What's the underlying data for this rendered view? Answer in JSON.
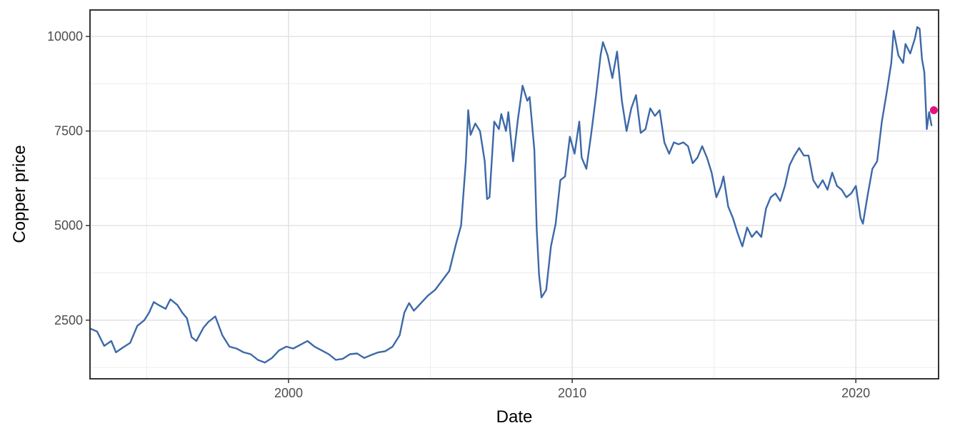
{
  "chart_data": {
    "type": "line",
    "title": "",
    "xlabel": "Date",
    "ylabel": "Copper price",
    "x_ticks": [
      "2000",
      "2010",
      "2020"
    ],
    "y_ticks": [
      "2500",
      "5000",
      "7500",
      "10000"
    ],
    "xlim": [
      "1993-01",
      "2022-12"
    ],
    "ylim": [
      950,
      10700
    ],
    "grid": true,
    "legend": "none",
    "line_color": "#3c68a8",
    "highlight_color": "#e0127e",
    "series": [
      {
        "points": [
          [
            "1993-01",
            2280
          ],
          [
            "1993-04",
            2200
          ],
          [
            "1993-07",
            1820
          ],
          [
            "1993-10",
            1950
          ],
          [
            "1993-12",
            1650
          ],
          [
            "1994-03",
            1780
          ],
          [
            "1994-06",
            1900
          ],
          [
            "1994-09",
            2350
          ],
          [
            "1994-12",
            2500
          ],
          [
            "1995-02",
            2700
          ],
          [
            "1995-04",
            2980
          ],
          [
            "1995-06",
            2900
          ],
          [
            "1995-09",
            2800
          ],
          [
            "1995-11",
            3050
          ],
          [
            "1996-02",
            2900
          ],
          [
            "1996-04",
            2700
          ],
          [
            "1996-06",
            2550
          ],
          [
            "1996-08",
            2050
          ],
          [
            "1996-10",
            1950
          ],
          [
            "1997-01",
            2300
          ],
          [
            "1997-03",
            2450
          ],
          [
            "1997-06",
            2600
          ],
          [
            "1997-09",
            2100
          ],
          [
            "1997-12",
            1800
          ],
          [
            "1998-03",
            1750
          ],
          [
            "1998-06",
            1650
          ],
          [
            "1998-09",
            1600
          ],
          [
            "1998-12",
            1450
          ],
          [
            "1999-03",
            1380
          ],
          [
            "1999-06",
            1500
          ],
          [
            "1999-09",
            1700
          ],
          [
            "1999-12",
            1800
          ],
          [
            "2000-03",
            1750
          ],
          [
            "2000-06",
            1850
          ],
          [
            "2000-09",
            1950
          ],
          [
            "2000-12",
            1800
          ],
          [
            "2001-03",
            1700
          ],
          [
            "2001-06",
            1600
          ],
          [
            "2001-09",
            1450
          ],
          [
            "2001-12",
            1480
          ],
          [
            "2002-03",
            1600
          ],
          [
            "2002-06",
            1620
          ],
          [
            "2002-09",
            1500
          ],
          [
            "2002-12",
            1580
          ],
          [
            "2003-03",
            1650
          ],
          [
            "2003-06",
            1680
          ],
          [
            "2003-09",
            1800
          ],
          [
            "2003-12",
            2100
          ],
          [
            "2004-02",
            2700
          ],
          [
            "2004-04",
            2950
          ],
          [
            "2004-06",
            2750
          ],
          [
            "2004-09",
            2950
          ],
          [
            "2004-12",
            3150
          ],
          [
            "2005-03",
            3300
          ],
          [
            "2005-06",
            3550
          ],
          [
            "2005-09",
            3800
          ],
          [
            "2005-12",
            4550
          ],
          [
            "2006-02",
            5000
          ],
          [
            "2006-04",
            6700
          ],
          [
            "2006-05",
            8050
          ],
          [
            "2006-06",
            7400
          ],
          [
            "2006-08",
            7700
          ],
          [
            "2006-10",
            7500
          ],
          [
            "2006-12",
            6700
          ],
          [
            "2007-01",
            5700
          ],
          [
            "2007-02",
            5750
          ],
          [
            "2007-04",
            7750
          ],
          [
            "2007-06",
            7550
          ],
          [
            "2007-07",
            7950
          ],
          [
            "2007-09",
            7500
          ],
          [
            "2007-10",
            8000
          ],
          [
            "2007-12",
            6700
          ],
          [
            "2008-02",
            7800
          ],
          [
            "2008-04",
            8700
          ],
          [
            "2008-06",
            8300
          ],
          [
            "2008-07",
            8400
          ],
          [
            "2008-09",
            7000
          ],
          [
            "2008-10",
            4900
          ],
          [
            "2008-11",
            3700
          ],
          [
            "2008-12",
            3100
          ],
          [
            "2009-02",
            3300
          ],
          [
            "2009-04",
            4450
          ],
          [
            "2009-06",
            5050
          ],
          [
            "2009-08",
            6200
          ],
          [
            "2009-10",
            6300
          ],
          [
            "2009-12",
            7350
          ],
          [
            "2010-02",
            6900
          ],
          [
            "2010-04",
            7750
          ],
          [
            "2010-05",
            6800
          ],
          [
            "2010-07",
            6500
          ],
          [
            "2010-09",
            7400
          ],
          [
            "2010-11",
            8400
          ],
          [
            "2011-01",
            9500
          ],
          [
            "2011-02",
            9850
          ],
          [
            "2011-04",
            9500
          ],
          [
            "2011-06",
            8900
          ],
          [
            "2011-08",
            9600
          ],
          [
            "2011-10",
            8300
          ],
          [
            "2011-12",
            7500
          ],
          [
            "2012-02",
            8100
          ],
          [
            "2012-04",
            8450
          ],
          [
            "2012-06",
            7450
          ],
          [
            "2012-08",
            7550
          ],
          [
            "2012-10",
            8100
          ],
          [
            "2012-12",
            7900
          ],
          [
            "2013-02",
            8050
          ],
          [
            "2013-04",
            7200
          ],
          [
            "2013-06",
            6900
          ],
          [
            "2013-08",
            7200
          ],
          [
            "2013-10",
            7150
          ],
          [
            "2013-12",
            7200
          ],
          [
            "2014-02",
            7100
          ],
          [
            "2014-04",
            6650
          ],
          [
            "2014-06",
            6800
          ],
          [
            "2014-08",
            7100
          ],
          [
            "2014-10",
            6800
          ],
          [
            "2014-12",
            6400
          ],
          [
            "2015-02",
            5750
          ],
          [
            "2015-04",
            6050
          ],
          [
            "2015-05",
            6300
          ],
          [
            "2015-07",
            5500
          ],
          [
            "2015-09",
            5200
          ],
          [
            "2015-11",
            4800
          ],
          [
            "2016-01",
            4450
          ],
          [
            "2016-03",
            4950
          ],
          [
            "2016-05",
            4700
          ],
          [
            "2016-07",
            4850
          ],
          [
            "2016-09",
            4700
          ],
          [
            "2016-11",
            5450
          ],
          [
            "2017-01",
            5750
          ],
          [
            "2017-03",
            5850
          ],
          [
            "2017-05",
            5650
          ],
          [
            "2017-07",
            6050
          ],
          [
            "2017-09",
            6600
          ],
          [
            "2017-11",
            6850
          ],
          [
            "2018-01",
            7050
          ],
          [
            "2018-03",
            6850
          ],
          [
            "2018-05",
            6850
          ],
          [
            "2018-07",
            6200
          ],
          [
            "2018-09",
            6000
          ],
          [
            "2018-11",
            6200
          ],
          [
            "2019-01",
            5950
          ],
          [
            "2019-03",
            6400
          ],
          [
            "2019-05",
            6050
          ],
          [
            "2019-07",
            5950
          ],
          [
            "2019-09",
            5750
          ],
          [
            "2019-11",
            5850
          ],
          [
            "2020-01",
            6050
          ],
          [
            "2020-03",
            5200
          ],
          [
            "2020-04",
            5050
          ],
          [
            "2020-06",
            5800
          ],
          [
            "2020-08",
            6500
          ],
          [
            "2020-10",
            6700
          ],
          [
            "2020-12",
            7750
          ],
          [
            "2021-02",
            8500
          ],
          [
            "2021-04",
            9300
          ],
          [
            "2021-05",
            10150
          ],
          [
            "2021-07",
            9500
          ],
          [
            "2021-09",
            9300
          ],
          [
            "2021-10",
            9800
          ],
          [
            "2021-12",
            9550
          ],
          [
            "2022-02",
            9950
          ],
          [
            "2022-03",
            10250
          ],
          [
            "2022-04",
            10200
          ],
          [
            "2022-05",
            9400
          ],
          [
            "2022-06",
            9050
          ],
          [
            "2022-07",
            7550
          ],
          [
            "2022-08",
            8000
          ],
          [
            "2022-09",
            7650
          ]
        ]
      }
    ],
    "highlight_point": [
      "2022-10",
      8050
    ]
  }
}
